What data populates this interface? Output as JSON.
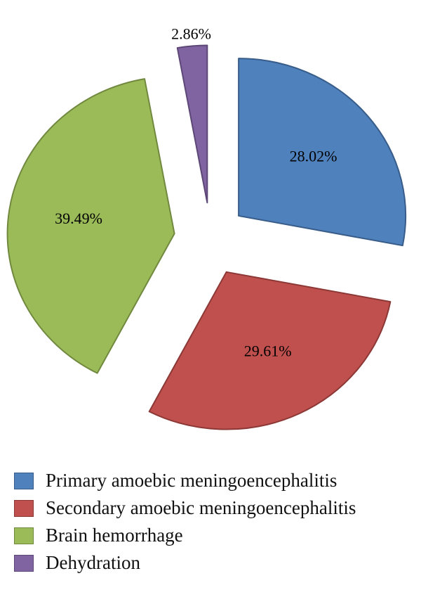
{
  "chart_data": {
    "type": "pie",
    "title": "",
    "exploded": true,
    "slices": [
      {
        "name": "Primary amoebic meningoencephalitis",
        "value": 28.02,
        "label": "28.02%",
        "color": "#4F81BD",
        "edge": "#385D8A"
      },
      {
        "name": "Secondary amoebic meningoencephalitis",
        "value": 29.61,
        "label": "29.61%",
        "color": "#C0504D",
        "edge": "#8C3836"
      },
      {
        "name": "Brain hemorrhage",
        "value": 39.49,
        "label": "39.49%",
        "color": "#9BBB59",
        "edge": "#71893F"
      },
      {
        "name": "Dehydration",
        "value": 2.86,
        "label": "2.86%",
        "color": "#8064A2",
        "edge": "#5C4776"
      }
    ],
    "legend_position": "bottom"
  }
}
